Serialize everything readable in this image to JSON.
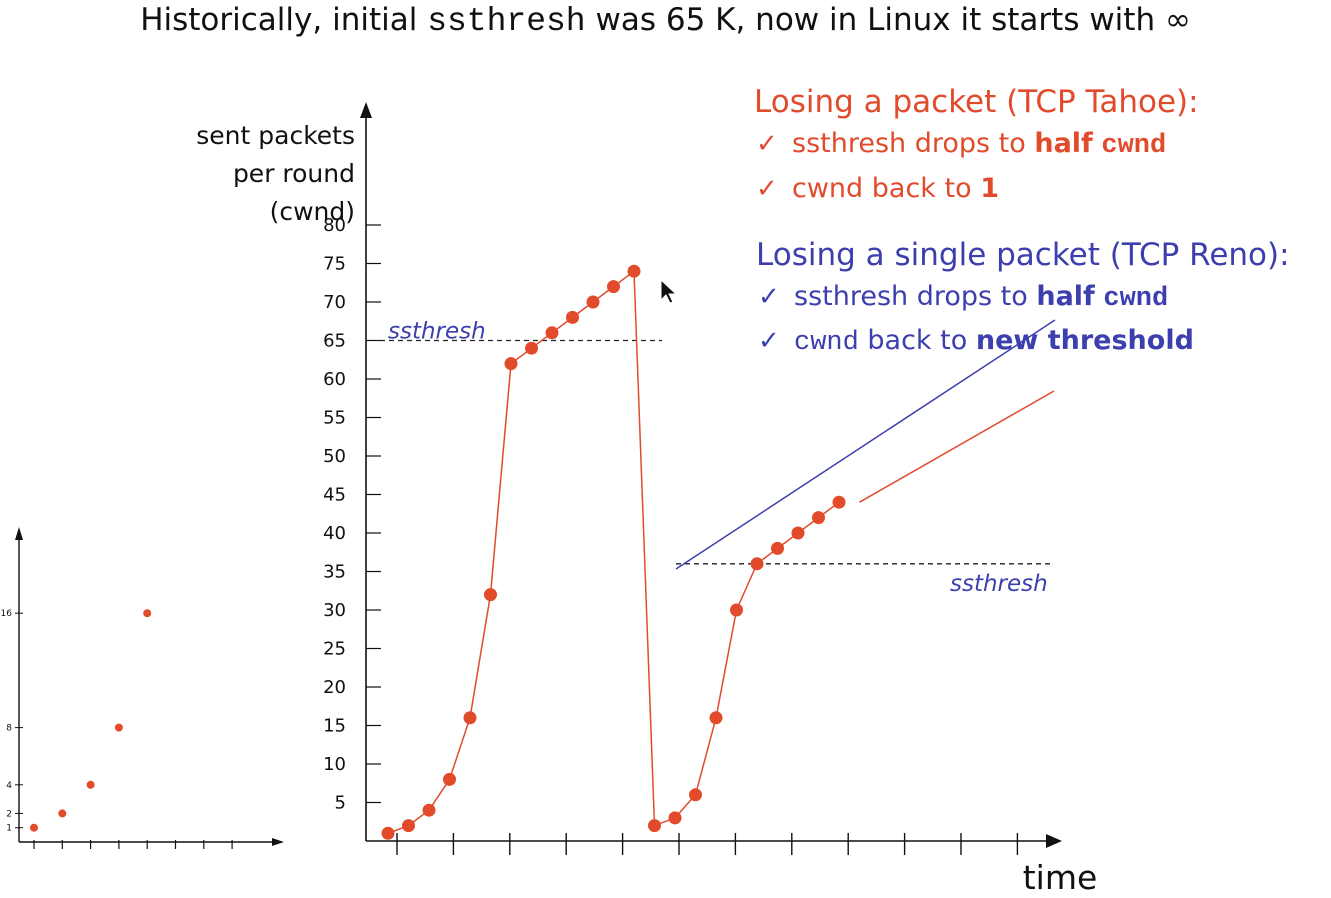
{
  "title": {
    "prefix": "Historically, initial",
    "code": "ssthresh",
    "suffix": "was 65 K, now in Linux it starts with ∞"
  },
  "annotations": {
    "tahoe": {
      "heading": "Losing a packet (TCP Tahoe):",
      "items": [
        {
          "check": "✓",
          "text": "ssthresh drops to ",
          "bold": "half",
          "code": "cwnd"
        },
        {
          "check": "✓",
          "text": "cwnd back to ",
          "bold": "1"
        }
      ]
    },
    "reno": {
      "heading": "Losing a single packet (TCP Reno):",
      "items": [
        {
          "check": "✓",
          "text": "ssthresh drops to ",
          "bold": "half",
          "code": "cwnd"
        },
        {
          "check": "✓",
          "code": "cwnd",
          "text": " back to ",
          "bold": "new threshold"
        }
      ]
    }
  },
  "colors": {
    "tahoe": "#e14b2c",
    "reno": "#3c3fad",
    "axis": "#111111"
  },
  "chart_data": [
    {
      "type": "line",
      "ylabel": [
        "sent packets",
        "per round",
        "(cwnd)"
      ],
      "xlabel": "time",
      "ylim": [
        0,
        80
      ],
      "yticks": [
        5,
        10,
        15,
        20,
        25,
        30,
        35,
        40,
        45,
        50,
        55,
        60,
        65,
        70,
        75,
        80
      ],
      "xticks_count": 12,
      "series": [
        {
          "style": "tahoe",
          "x": [
            1,
            2,
            3,
            4,
            5,
            6,
            7,
            8,
            9,
            10,
            11,
            12,
            13,
            14,
            15,
            16,
            17,
            18,
            19,
            20,
            21,
            22,
            23,
            24,
            25
          ],
          "y": [
            1,
            2,
            4,
            8,
            16,
            32,
            62,
            64,
            66,
            68,
            70,
            72,
            74,
            2,
            3,
            6,
            16,
            30,
            36,
            38,
            40,
            42,
            44,
            null,
            null
          ]
        }
      ],
      "tahoe_extension": {
        "x": [
          24,
          32
        ],
        "y": [
          44,
          58
        ]
      },
      "reno_line": {
        "x": [
          14,
          32
        ],
        "y": [
          36,
          66
        ]
      },
      "thresholds": [
        {
          "label": "ssthresh",
          "y": 65,
          "x": [
            1,
            14
          ]
        },
        {
          "label": "ssthresh",
          "y": 36,
          "x": [
            14,
            32
          ]
        }
      ]
    },
    {
      "type": "scatter",
      "yticks": [
        1,
        2,
        4,
        8,
        16
      ],
      "x": [
        1,
        2,
        3,
        4,
        5
      ],
      "y": [
        1,
        2,
        4,
        8,
        16
      ],
      "xticks_count": 8
    }
  ]
}
